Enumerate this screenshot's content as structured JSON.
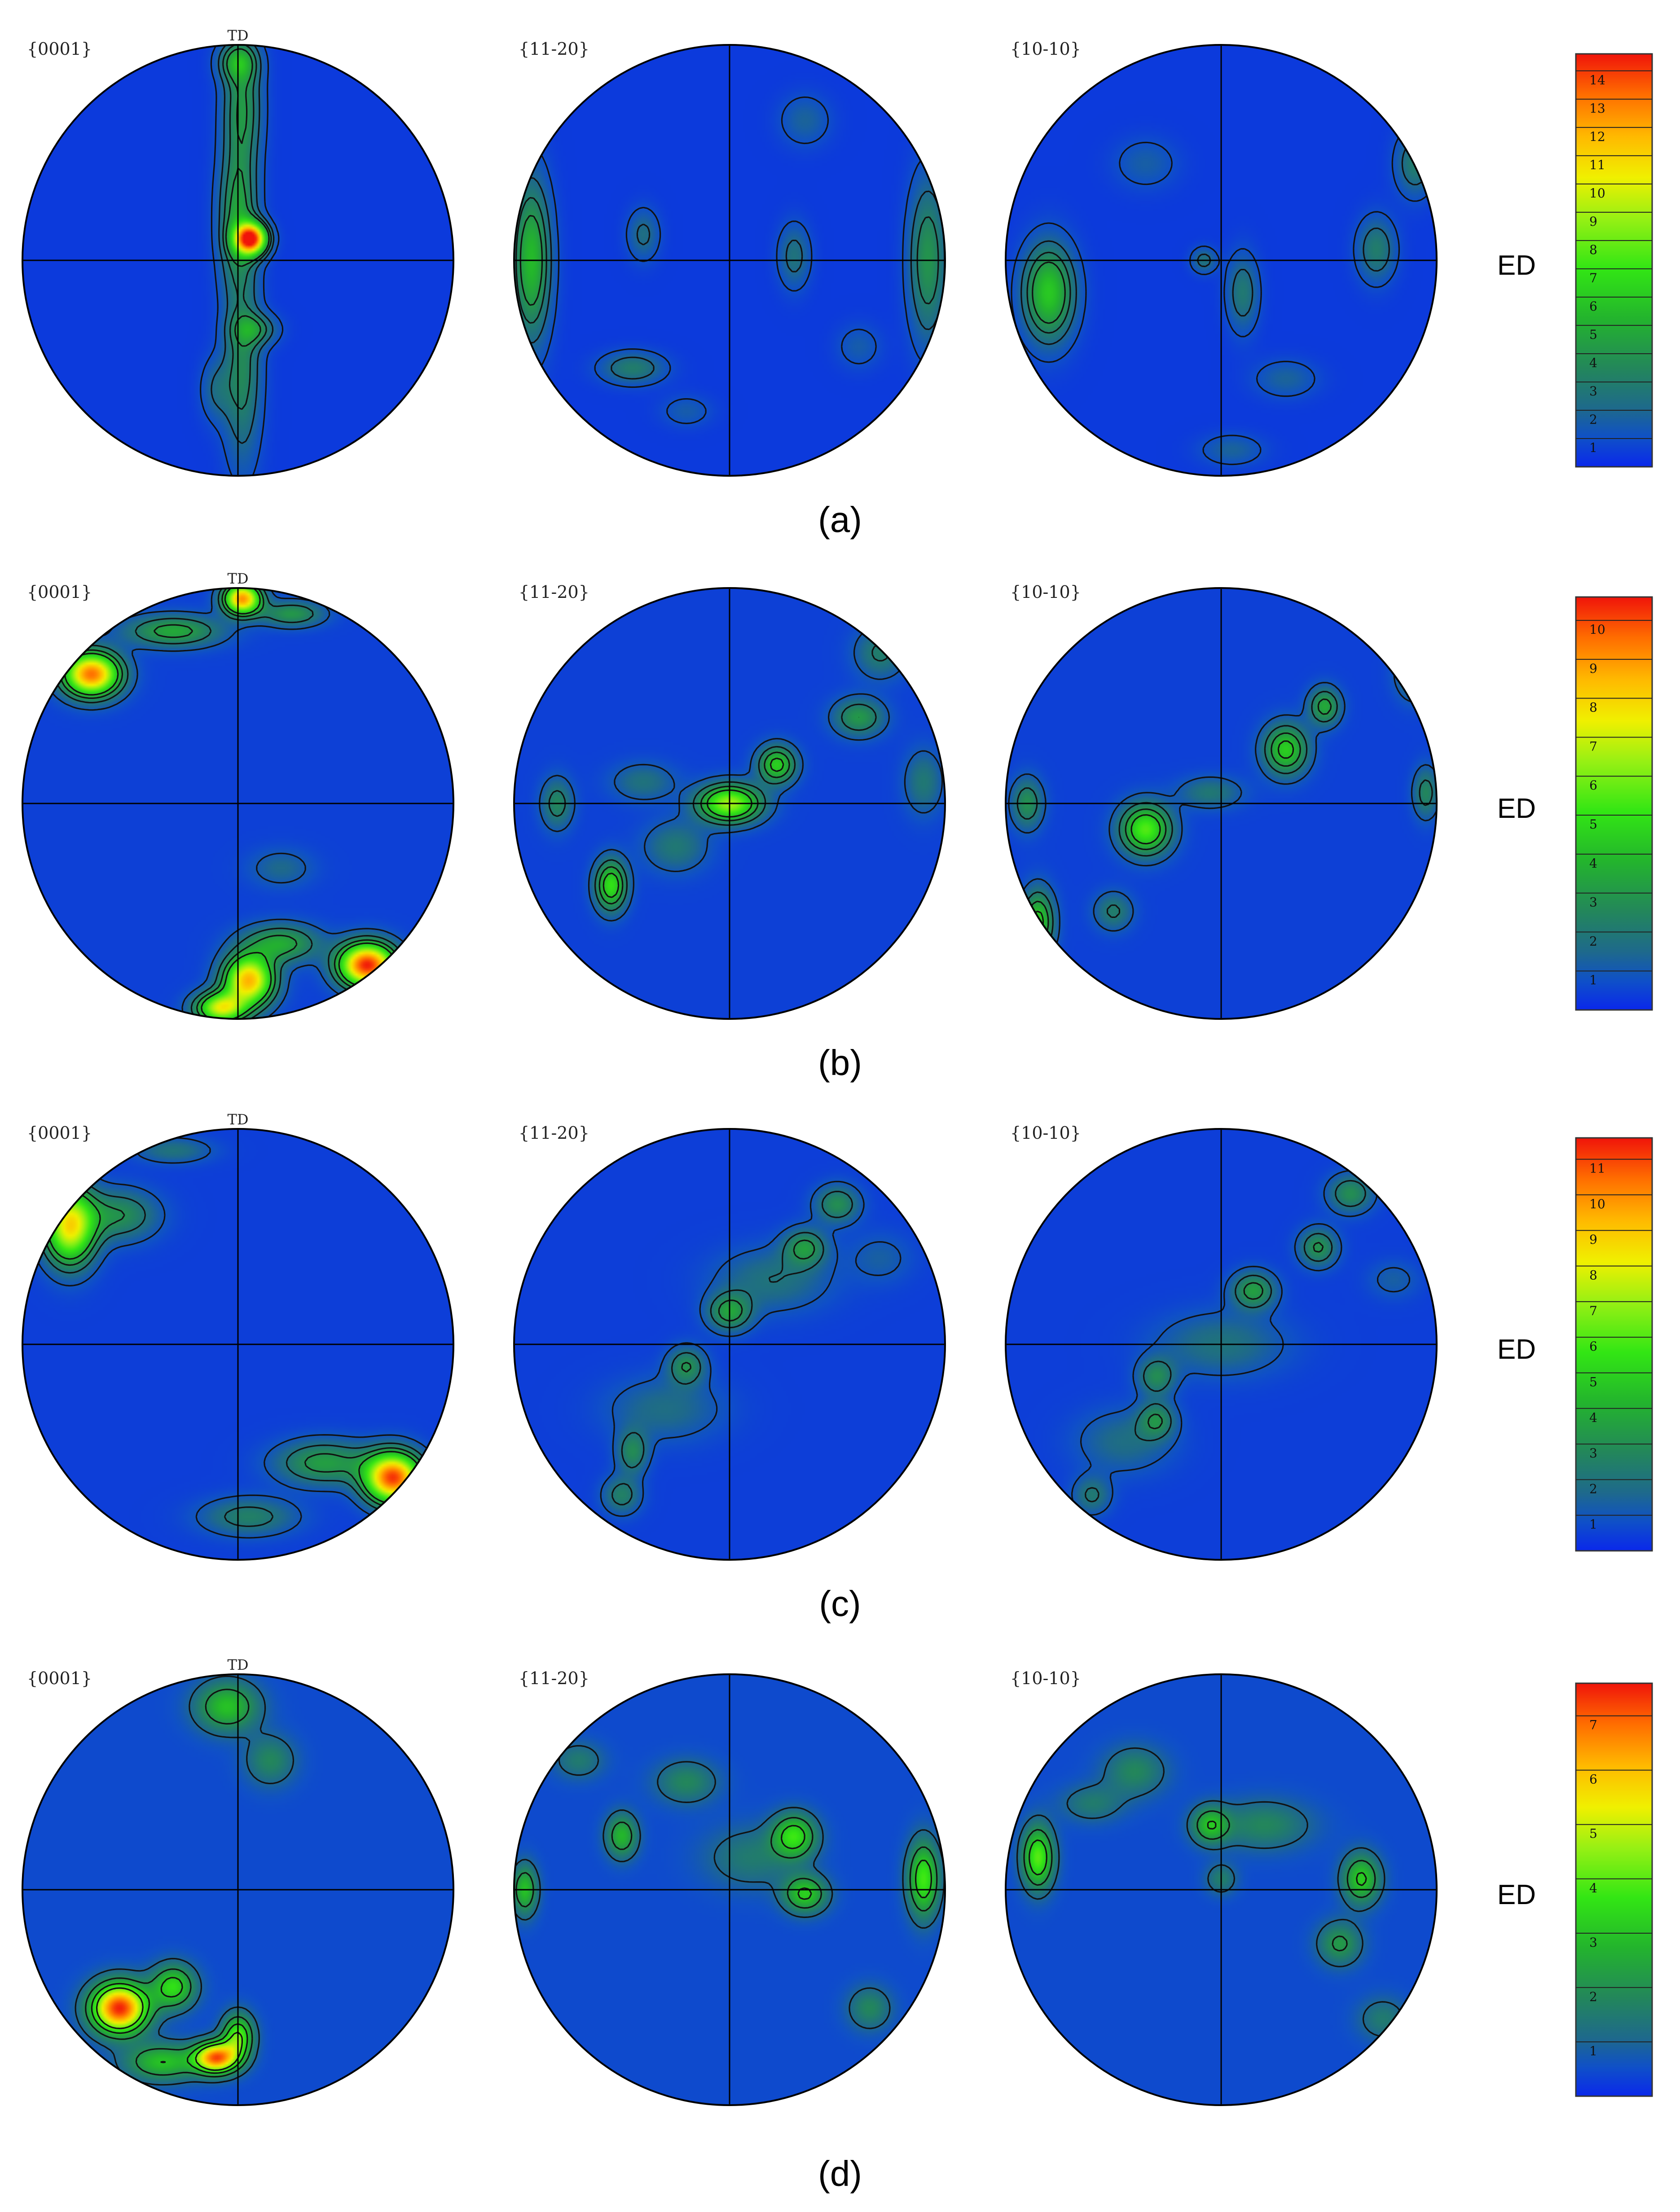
{
  "figure": {
    "direction_label": "ED",
    "td_label": "TD"
  },
  "chart_data": [
    {
      "type": "heatmap",
      "panel": "(a)",
      "planes": [
        "{0001}",
        "{11-20}",
        "{10-10}"
      ],
      "colorbar": {
        "ticks": [
          "1",
          "2",
          "3",
          "4",
          "5",
          "6",
          "7",
          "8",
          "9",
          "10",
          "11",
          "12",
          "13",
          "14"
        ],
        "max": 14.6
      },
      "basal_td_label": true,
      "poles": [
        [
          {
            "x": 0.0,
            "y": 0.2,
            "sx": 0.06,
            "sy": 0.22,
            "v": 4.5
          },
          {
            "x": 0.02,
            "y": 0.72,
            "sx": 0.06,
            "sy": 0.2,
            "v": 4.0
          },
          {
            "x": 0.06,
            "y": 0.1,
            "sx": 0.05,
            "sy": 0.05,
            "v": 14.0
          },
          {
            "x": 0.02,
            "y": -0.5,
            "sx": 0.06,
            "sy": 0.3,
            "v": 3.5
          },
          {
            "x": 0.08,
            "y": -0.32,
            "sx": 0.07,
            "sy": 0.05,
            "v": 3.2
          },
          {
            "x": -0.1,
            "y": -0.6,
            "sx": 0.05,
            "sy": 0.1,
            "v": 2.0
          },
          {
            "x": 0.0,
            "y": 0.92,
            "sx": 0.06,
            "sy": 0.06,
            "v": 4.0
          }
        ],
        [
          {
            "x": -0.92,
            "y": 0.0,
            "sx": 0.06,
            "sy": 0.25,
            "v": 5.5
          },
          {
            "x": 0.92,
            "y": 0.0,
            "sx": 0.06,
            "sy": 0.25,
            "v": 4.0
          },
          {
            "x": 0.3,
            "y": 0.02,
            "sx": 0.05,
            "sy": 0.1,
            "v": 2.5
          },
          {
            "x": -0.45,
            "y": -0.5,
            "sx": 0.1,
            "sy": 0.05,
            "v": 3.0
          },
          {
            "x": -0.4,
            "y": 0.12,
            "sx": 0.05,
            "sy": 0.08,
            "v": 2.3
          },
          {
            "x": 0.35,
            "y": 0.65,
            "sx": 0.08,
            "sy": 0.08,
            "v": 1.8
          },
          {
            "x": -0.2,
            "y": -0.7,
            "sx": 0.08,
            "sy": 0.05,
            "v": 1.5
          },
          {
            "x": 0.6,
            "y": -0.4,
            "sx": 0.07,
            "sy": 0.07,
            "v": 1.5
          }
        ],
        [
          {
            "x": -0.8,
            "y": -0.15,
            "sx": 0.08,
            "sy": 0.15,
            "v": 6.0
          },
          {
            "x": 0.72,
            "y": 0.05,
            "sx": 0.06,
            "sy": 0.1,
            "v": 3.0
          },
          {
            "x": 0.1,
            "y": -0.15,
            "sx": 0.05,
            "sy": 0.12,
            "v": 2.8
          },
          {
            "x": -0.08,
            "y": 0.0,
            "sx": 0.04,
            "sy": 0.04,
            "v": 2.5
          },
          {
            "x": 0.9,
            "y": 0.45,
            "sx": 0.06,
            "sy": 0.1,
            "v": 3.0
          },
          {
            "x": 0.3,
            "y": -0.55,
            "sx": 0.1,
            "sy": 0.06,
            "v": 1.8
          },
          {
            "x": -0.35,
            "y": 0.45,
            "sx": 0.1,
            "sy": 0.08,
            "v": 1.6
          },
          {
            "x": 0.05,
            "y": -0.88,
            "sx": 0.1,
            "sy": 0.05,
            "v": 1.8
          }
        ]
      ]
    },
    {
      "type": "heatmap",
      "panel": "(b)",
      "planes": [
        "{0001}",
        "{11-20}",
        "{10-10}"
      ],
      "colorbar": {
        "ticks": [
          "1",
          "2",
          "3",
          "4",
          "5",
          "6",
          "7",
          "8",
          "9",
          "10"
        ],
        "max": 10.6
      },
      "basal_td_label": true,
      "poles": [
        [
          {
            "x": -0.68,
            "y": 0.6,
            "sx": 0.09,
            "sy": 0.07,
            "v": 9.5
          },
          {
            "x": -0.3,
            "y": 0.8,
            "sx": 0.15,
            "sy": 0.05,
            "v": 3.5
          },
          {
            "x": 0.02,
            "y": 0.95,
            "sx": 0.06,
            "sy": 0.05,
            "v": 9.0
          },
          {
            "x": 0.25,
            "y": 0.88,
            "sx": 0.1,
            "sy": 0.04,
            "v": 3.0
          },
          {
            "x": 0.6,
            "y": -0.75,
            "sx": 0.09,
            "sy": 0.07,
            "v": 10.5
          },
          {
            "x": 0.05,
            "y": -0.82,
            "sx": 0.08,
            "sy": 0.08,
            "v": 8.5
          },
          {
            "x": 0.2,
            "y": -0.65,
            "sx": 0.12,
            "sy": 0.06,
            "v": 3.5
          },
          {
            "x": -0.08,
            "y": -0.95,
            "sx": 0.08,
            "sy": 0.05,
            "v": 7.0
          },
          {
            "x": 0.2,
            "y": -0.3,
            "sx": 0.1,
            "sy": 0.06,
            "v": 1.5
          }
        ],
        [
          {
            "x": 0.0,
            "y": 0.0,
            "sx": 0.1,
            "sy": 0.06,
            "v": 6.5
          },
          {
            "x": 0.22,
            "y": 0.18,
            "sx": 0.06,
            "sy": 0.06,
            "v": 4.5
          },
          {
            "x": -0.55,
            "y": -0.38,
            "sx": 0.05,
            "sy": 0.08,
            "v": 5.0
          },
          {
            "x": 0.6,
            "y": 0.4,
            "sx": 0.08,
            "sy": 0.06,
            "v": 3.0
          },
          {
            "x": -0.8,
            "y": 0.0,
            "sx": 0.05,
            "sy": 0.08,
            "v": 2.5
          },
          {
            "x": -0.25,
            "y": -0.2,
            "sx": 0.1,
            "sy": 0.08,
            "v": 2.0
          },
          {
            "x": 0.7,
            "y": 0.7,
            "sx": 0.08,
            "sy": 0.08,
            "v": 2.2
          },
          {
            "x": 0.9,
            "y": 0.1,
            "sx": 0.06,
            "sy": 0.1,
            "v": 2.0
          },
          {
            "x": -0.4,
            "y": 0.1,
            "sx": 0.1,
            "sy": 0.06,
            "v": 1.8
          }
        ],
        [
          {
            "x": -0.35,
            "y": -0.12,
            "sx": 0.08,
            "sy": 0.08,
            "v": 5.5
          },
          {
            "x": 0.3,
            "y": 0.25,
            "sx": 0.07,
            "sy": 0.08,
            "v": 4.5
          },
          {
            "x": 0.48,
            "y": 0.45,
            "sx": 0.05,
            "sy": 0.06,
            "v": 3.5
          },
          {
            "x": -0.85,
            "y": -0.55,
            "sx": 0.05,
            "sy": 0.1,
            "v": 4.5
          },
          {
            "x": -0.9,
            "y": 0.0,
            "sx": 0.05,
            "sy": 0.08,
            "v": 2.8
          },
          {
            "x": 0.9,
            "y": 0.6,
            "sx": 0.06,
            "sy": 0.08,
            "v": 2.5
          },
          {
            "x": 0.95,
            "y": 0.05,
            "sx": 0.04,
            "sy": 0.08,
            "v": 2.5
          },
          {
            "x": -0.5,
            "y": -0.5,
            "sx": 0.06,
            "sy": 0.06,
            "v": 2.2
          },
          {
            "x": -0.05,
            "y": 0.05,
            "sx": 0.1,
            "sy": 0.05,
            "v": 2.0
          }
        ]
      ]
    },
    {
      "type": "heatmap",
      "panel": "(c)",
      "planes": [
        "{0001}",
        "{11-20}",
        "{10-10}"
      ],
      "colorbar": {
        "ticks": [
          "1",
          "2",
          "3",
          "4",
          "5",
          "6",
          "7",
          "8",
          "9",
          "10",
          "11"
        ],
        "max": 11.6
      },
      "basal_td_label": true,
      "poles": [
        [
          {
            "x": -0.78,
            "y": 0.55,
            "sx": 0.08,
            "sy": 0.12,
            "v": 8.5
          },
          {
            "x": -0.55,
            "y": 0.6,
            "sx": 0.12,
            "sy": 0.08,
            "v": 3.0
          },
          {
            "x": 0.72,
            "y": -0.62,
            "sx": 0.09,
            "sy": 0.08,
            "v": 11.0
          },
          {
            "x": 0.4,
            "y": -0.55,
            "sx": 0.15,
            "sy": 0.07,
            "v": 3.5
          },
          {
            "x": 0.05,
            "y": -0.8,
            "sx": 0.15,
            "sy": 0.06,
            "v": 2.5
          },
          {
            "x": -0.3,
            "y": 0.9,
            "sx": 0.12,
            "sy": 0.04,
            "v": 2.0
          }
        ],
        [
          {
            "x": 0.0,
            "y": 0.15,
            "sx": 0.07,
            "sy": 0.06,
            "v": 3.5
          },
          {
            "x": 0.35,
            "y": 0.45,
            "sx": 0.07,
            "sy": 0.06,
            "v": 3.2
          },
          {
            "x": 0.5,
            "y": 0.65,
            "sx": 0.07,
            "sy": 0.06,
            "v": 3.0
          },
          {
            "x": -0.2,
            "y": -0.1,
            "sx": 0.06,
            "sy": 0.06,
            "v": 3.0
          },
          {
            "x": -0.45,
            "y": -0.5,
            "sx": 0.05,
            "sy": 0.07,
            "v": 2.8
          },
          {
            "x": -0.5,
            "y": -0.7,
            "sx": 0.06,
            "sy": 0.06,
            "v": 2.5
          },
          {
            "x": 0.2,
            "y": 0.3,
            "sx": 0.18,
            "sy": 0.1,
            "v": 2.0
          },
          {
            "x": -0.3,
            "y": -0.3,
            "sx": 0.18,
            "sy": 0.1,
            "v": 1.8
          },
          {
            "x": 0.7,
            "y": 0.4,
            "sx": 0.1,
            "sy": 0.08,
            "v": 1.3
          }
        ],
        [
          {
            "x": 0.15,
            "y": 0.25,
            "sx": 0.07,
            "sy": 0.06,
            "v": 3.5
          },
          {
            "x": 0.45,
            "y": 0.45,
            "sx": 0.06,
            "sy": 0.06,
            "v": 3.2
          },
          {
            "x": 0.6,
            "y": 0.7,
            "sx": 0.07,
            "sy": 0.06,
            "v": 3.0
          },
          {
            "x": -0.3,
            "y": -0.15,
            "sx": 0.06,
            "sy": 0.06,
            "v": 2.8
          },
          {
            "x": -0.3,
            "y": -0.35,
            "sx": 0.06,
            "sy": 0.06,
            "v": 2.8
          },
          {
            "x": -0.6,
            "y": -0.7,
            "sx": 0.06,
            "sy": 0.06,
            "v": 2.2
          },
          {
            "x": 0.0,
            "y": 0.0,
            "sx": 0.2,
            "sy": 0.1,
            "v": 2.0
          },
          {
            "x": -0.45,
            "y": -0.45,
            "sx": 0.15,
            "sy": 0.1,
            "v": 1.8
          },
          {
            "x": 0.8,
            "y": 0.3,
            "sx": 0.08,
            "sy": 0.06,
            "v": 1.3
          }
        ]
      ]
    },
    {
      "type": "heatmap",
      "panel": "(d)",
      "planes": [
        "{0001}",
        "{11-20}",
        "{10-10}"
      ],
      "colorbar": {
        "ticks": [
          "1",
          "2",
          "3",
          "4",
          "5",
          "6",
          "7"
        ],
        "max": 7.6
      },
      "basal_td_label": true,
      "poles": [
        [
          {
            "x": -0.55,
            "y": -0.55,
            "sx": 0.09,
            "sy": 0.08,
            "v": 7.5
          },
          {
            "x": -0.1,
            "y": -0.78,
            "sx": 0.07,
            "sy": 0.05,
            "v": 6.8
          },
          {
            "x": -0.3,
            "y": -0.45,
            "sx": 0.07,
            "sy": 0.07,
            "v": 3.5
          },
          {
            "x": 0.0,
            "y": -0.68,
            "sx": 0.05,
            "sy": 0.07,
            "v": 4.0
          },
          {
            "x": -0.05,
            "y": 0.85,
            "sx": 0.1,
            "sy": 0.08,
            "v": 3.0
          },
          {
            "x": 0.15,
            "y": 0.6,
            "sx": 0.08,
            "sy": 0.08,
            "v": 1.8
          },
          {
            "x": -0.35,
            "y": -0.8,
            "sx": 0.12,
            "sy": 0.06,
            "v": 3.0
          }
        ],
        [
          {
            "x": 0.3,
            "y": 0.25,
            "sx": 0.07,
            "sy": 0.07,
            "v": 3.5
          },
          {
            "x": 0.35,
            "y": -0.02,
            "sx": 0.07,
            "sy": 0.06,
            "v": 3.2
          },
          {
            "x": 0.9,
            "y": 0.05,
            "sx": 0.05,
            "sy": 0.12,
            "v": 3.8
          },
          {
            "x": -0.5,
            "y": 0.25,
            "sx": 0.05,
            "sy": 0.07,
            "v": 2.8
          },
          {
            "x": -0.95,
            "y": 0.0,
            "sx": 0.04,
            "sy": 0.08,
            "v": 3.0
          },
          {
            "x": -0.2,
            "y": 0.5,
            "sx": 0.1,
            "sy": 0.07,
            "v": 1.8
          },
          {
            "x": 0.65,
            "y": -0.55,
            "sx": 0.07,
            "sy": 0.07,
            "v": 1.8
          },
          {
            "x": 0.1,
            "y": 0.15,
            "sx": 0.15,
            "sy": 0.1,
            "v": 1.5
          },
          {
            "x": -0.7,
            "y": 0.6,
            "sx": 0.08,
            "sy": 0.06,
            "v": 1.5
          }
        ],
        [
          {
            "x": -0.85,
            "y": 0.15,
            "sx": 0.05,
            "sy": 0.1,
            "v": 4.0
          },
          {
            "x": -0.05,
            "y": 0.3,
            "sx": 0.06,
            "sy": 0.06,
            "v": 2.8
          },
          {
            "x": 0.65,
            "y": 0.05,
            "sx": 0.06,
            "sy": 0.08,
            "v": 3.2
          },
          {
            "x": 0.55,
            "y": -0.25,
            "sx": 0.07,
            "sy": 0.07,
            "v": 2.2
          },
          {
            "x": -0.4,
            "y": 0.55,
            "sx": 0.1,
            "sy": 0.08,
            "v": 1.8
          },
          {
            "x": 0.2,
            "y": 0.3,
            "sx": 0.15,
            "sy": 0.08,
            "v": 1.8
          },
          {
            "x": -0.6,
            "y": 0.4,
            "sx": 0.1,
            "sy": 0.06,
            "v": 1.5
          },
          {
            "x": 0.75,
            "y": -0.6,
            "sx": 0.08,
            "sy": 0.07,
            "v": 1.5
          },
          {
            "x": 0.0,
            "y": 0.05,
            "sx": 0.05,
            "sy": 0.05,
            "v": 1.6
          }
        ]
      ]
    }
  ]
}
